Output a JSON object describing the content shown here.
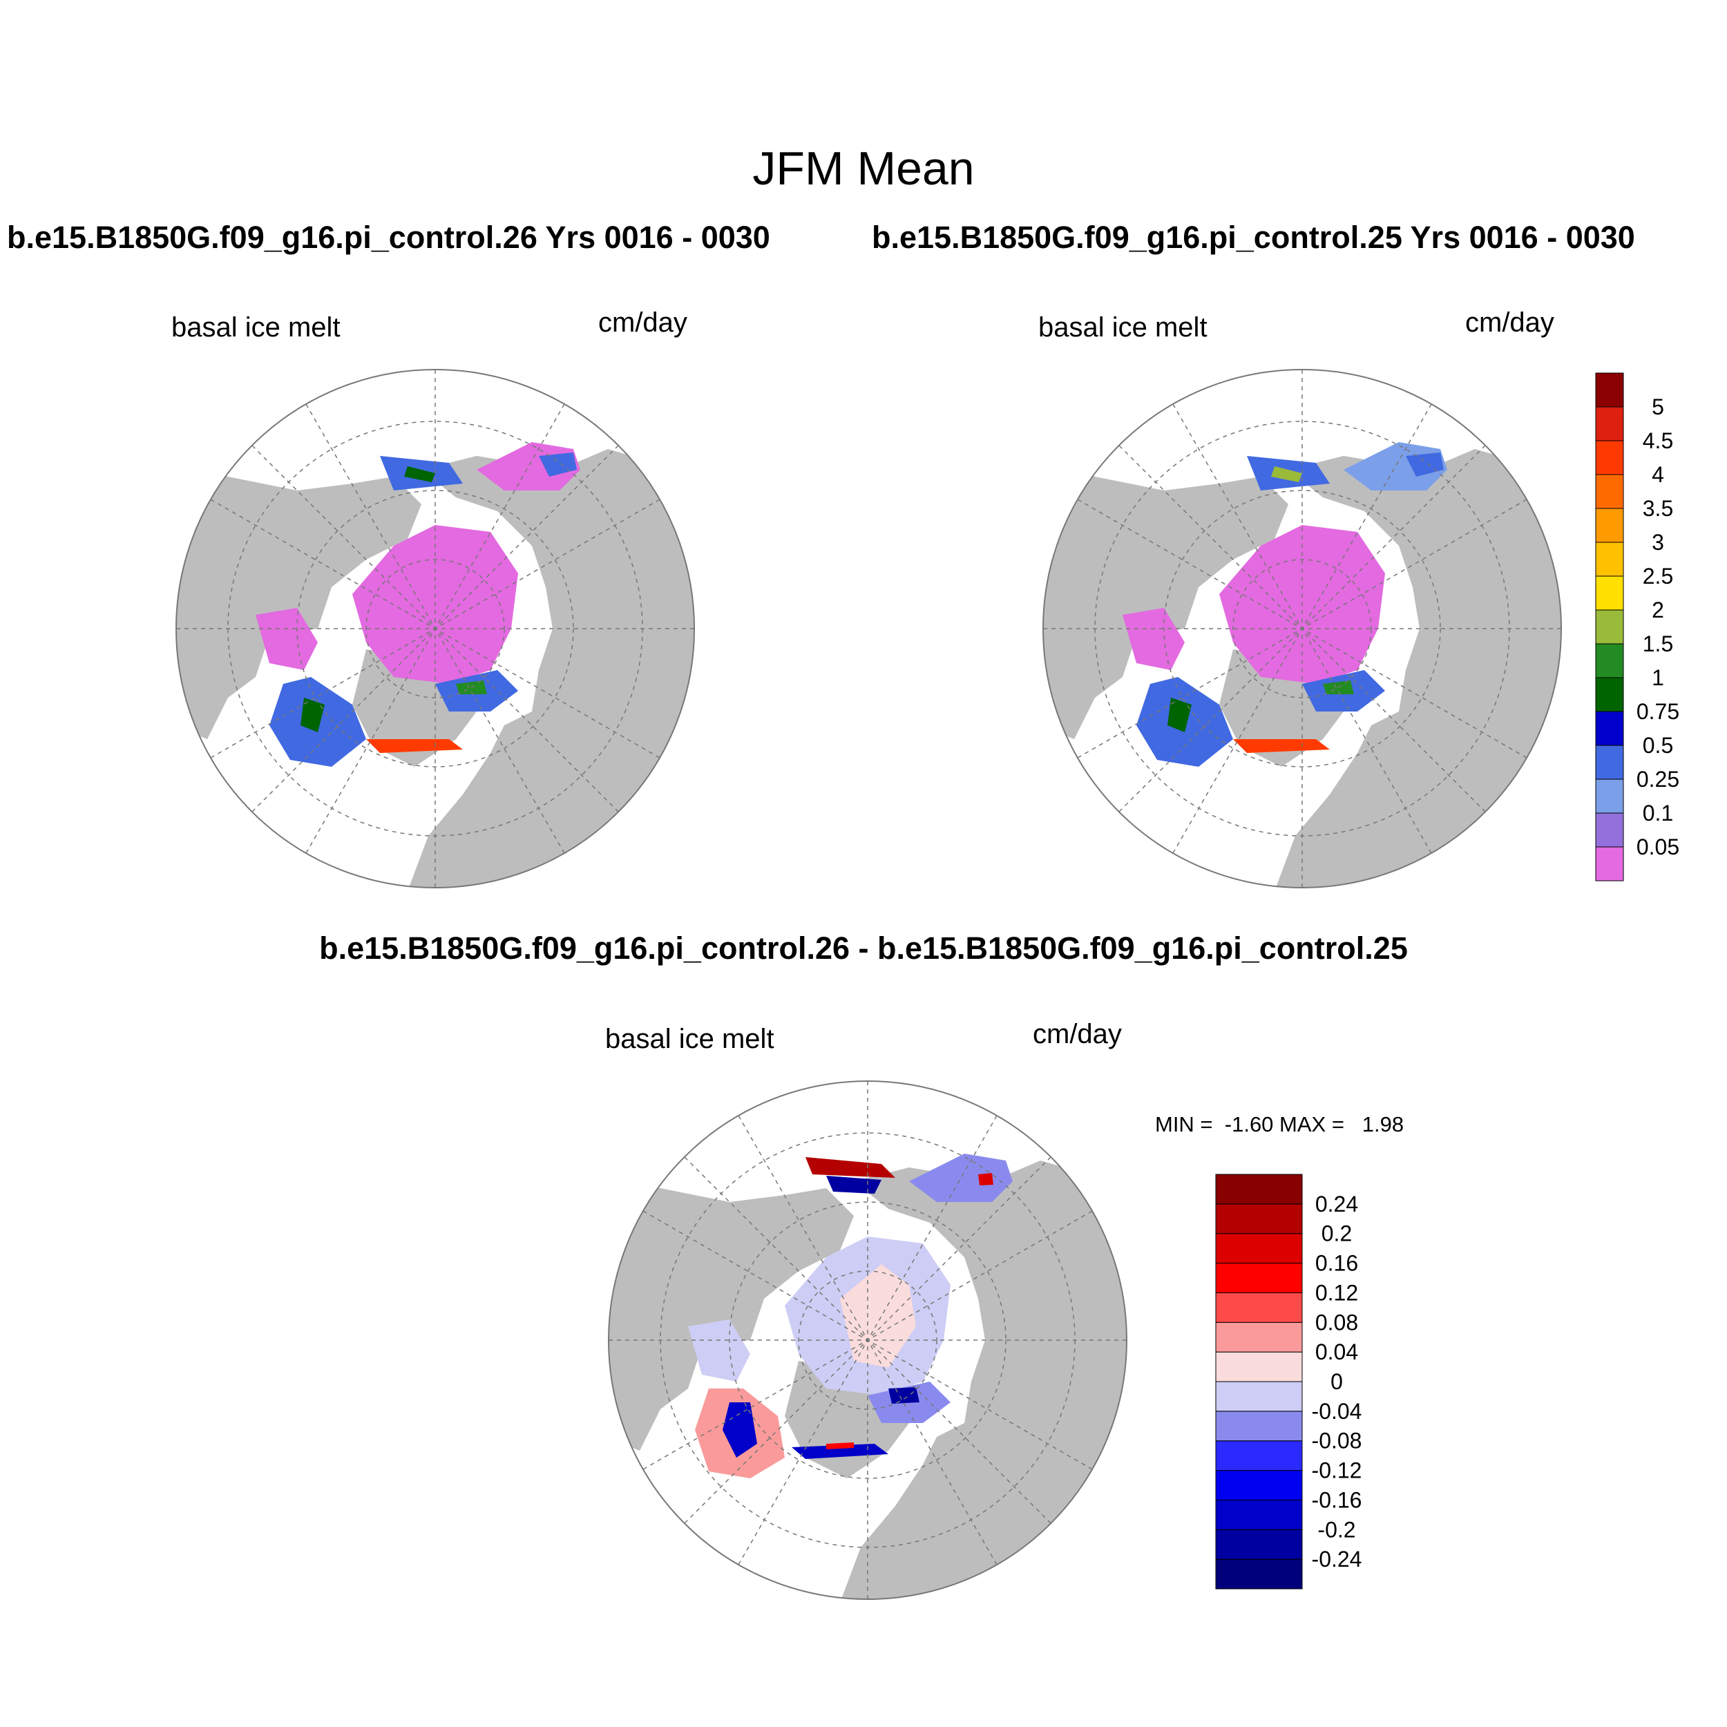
{
  "main_title": "JFM Mean",
  "panels": [
    {
      "case_title": "b.e15.B1850G.f09_g16.pi_control.26  Yrs 0016 - 0030",
      "variable": "basal ice melt",
      "units": "cm/day"
    },
    {
      "case_title": "b.e15.B1850G.f09_g16.pi_control.25  Yrs 0016 - 0030",
      "variable": "basal ice melt",
      "units": "cm/day"
    },
    {
      "case_title": "b.e15.B1850G.f09_g16.pi_control.26 - b.e15.B1850G.f09_g16.pi_control.25",
      "variable": "basal ice melt",
      "units": "cm/day",
      "min_max": "MIN =  -1.60 MAX =   1.98"
    }
  ],
  "colorbar_main": {
    "labels": [
      "5",
      "4.5",
      "4",
      "3.5",
      "3",
      "2.5",
      "2",
      "1.5",
      "1",
      "0.75",
      "0.5",
      "0.25",
      "0.1",
      "0.05"
    ],
    "colors": [
      "#e36ae0",
      "#9370db",
      "#7b9fe8",
      "#4169e1",
      "#0000cd",
      "#006400",
      "#228b22",
      "#9aba3a",
      "#ffe000",
      "#ffc000",
      "#ff9a00",
      "#ff6a00",
      "#ff3a00",
      "#dd2010",
      "#8b0000"
    ]
  },
  "colorbar_diff": {
    "labels": [
      "0.24",
      "0.2",
      "0.16",
      "0.12",
      "0.08",
      "0.04",
      "0",
      "-0.04",
      "-0.08",
      "-0.12",
      "-0.16",
      "-0.2",
      "-0.24"
    ],
    "colors": [
      "#00007a",
      "#0000a0",
      "#0000c8",
      "#0000f0",
      "#2a2aff",
      "#8a8aee",
      "#cdcdf5",
      "#fadcdc",
      "#fa9a9a",
      "#ff4a4a",
      "#ff0000",
      "#dc0000",
      "#b40000",
      "#880000"
    ]
  },
  "map_colors": {
    "land": "#bdbdbd",
    "ocean": "#ffffff",
    "grid": "#777777",
    "ice_pink": "#e36ae0",
    "diff_light_blue": "#cdcdf5",
    "diff_light_pink": "#fadcdc"
  }
}
